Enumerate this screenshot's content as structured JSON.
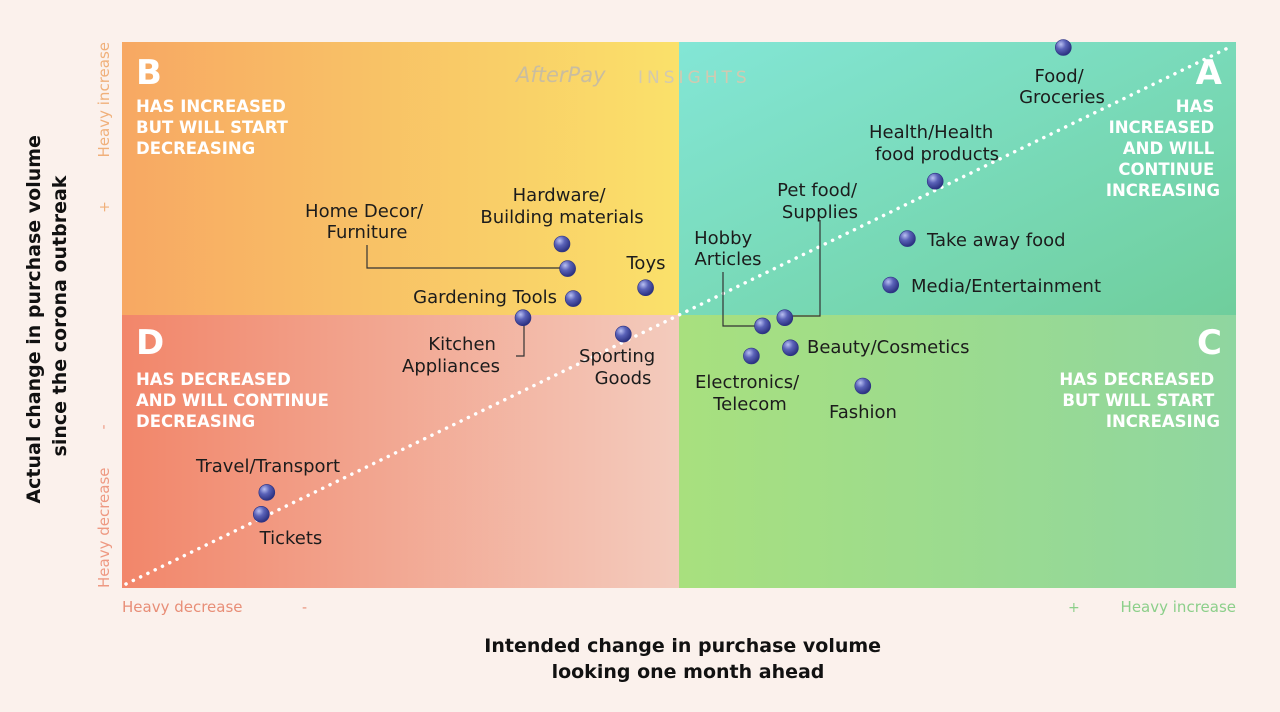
{
  "watermark": {
    "brand": "AfterPay",
    "suffix": "INSIGHTS"
  },
  "quadrants": {
    "A": {
      "letter": "A",
      "lines": [
        "HAS",
        "INCREASED",
        "AND WILL",
        "CONTINUE",
        "INCREASING"
      ]
    },
    "B": {
      "letter": "B",
      "lines": [
        "HAS INCREASED",
        "BUT WILL START",
        "DECREASING"
      ]
    },
    "C": {
      "letter": "C",
      "lines": [
        "HAS DECREASED",
        "BUT WILL START",
        "INCREASING"
      ]
    },
    "D": {
      "letter": "D",
      "lines": [
        "HAS DECREASED",
        "AND WILL CONTINUE",
        "DECREASING"
      ]
    }
  },
  "axes": {
    "x_title": [
      "Intended change in purchase volume",
      "looking one month ahead"
    ],
    "y_title": [
      "Actual change in purchase volume",
      "since the corona outbreak"
    ],
    "x_low": "Heavy decrease",
    "x_high": "Heavy increase",
    "y_low": "Heavy decrease",
    "y_high": "Heavy increase",
    "minus": "-",
    "plus": "+"
  },
  "colors": {
    "quadrant_A": "#7fdcc0",
    "quadrant_B": "#f8c36a",
    "quadrant_C": "#a7df8c",
    "quadrant_D": "#f29a7d",
    "point": "#5a62b8",
    "diagonal": "#ffffff"
  },
  "chart_data": {
    "type": "scatter",
    "xlabel": "Intended change in purchase volume looking one month ahead",
    "ylabel": "Actual change in purchase volume since the corona outbreak",
    "xlim": [
      -1,
      1
    ],
    "ylim": [
      -1,
      1
    ],
    "grid": false,
    "reference_line": "y = x (diagonal)",
    "points": [
      {
        "label": "Food/ Groceries",
        "x": 0.69,
        "y": 0.98
      },
      {
        "label": "Health/Health food products",
        "x": 0.46,
        "y": 0.49
      },
      {
        "label": "Take away food",
        "x": 0.41,
        "y": 0.28
      },
      {
        "label": "Media/Entertainment",
        "x": 0.38,
        "y": 0.11
      },
      {
        "label": "Pet food/ Supplies",
        "x": 0.19,
        "y": -0.01
      },
      {
        "label": "Hobby Articles",
        "x": 0.15,
        "y": -0.04
      },
      {
        "label": "Beauty/Cosmetics",
        "x": 0.2,
        "y": -0.12
      },
      {
        "label": "Electronics/ Telecom",
        "x": 0.13,
        "y": -0.15
      },
      {
        "label": "Fashion",
        "x": 0.33,
        "y": -0.26
      },
      {
        "label": "Hardware/ Building materials",
        "x": -0.21,
        "y": 0.26
      },
      {
        "label": "Home Decor/ Furniture",
        "x": -0.2,
        "y": 0.17
      },
      {
        "label": "Toys",
        "x": -0.06,
        "y": 0.1
      },
      {
        "label": "Gardening Tools",
        "x": -0.19,
        "y": 0.06
      },
      {
        "label": "Kitchen Appliances",
        "x": -0.28,
        "y": -0.01
      },
      {
        "label": "Sporting Goods",
        "x": -0.1,
        "y": -0.07
      },
      {
        "label": "Travel/Transport",
        "x": -0.74,
        "y": -0.65
      },
      {
        "label": "Tickets",
        "x": -0.75,
        "y": -0.73
      }
    ]
  }
}
